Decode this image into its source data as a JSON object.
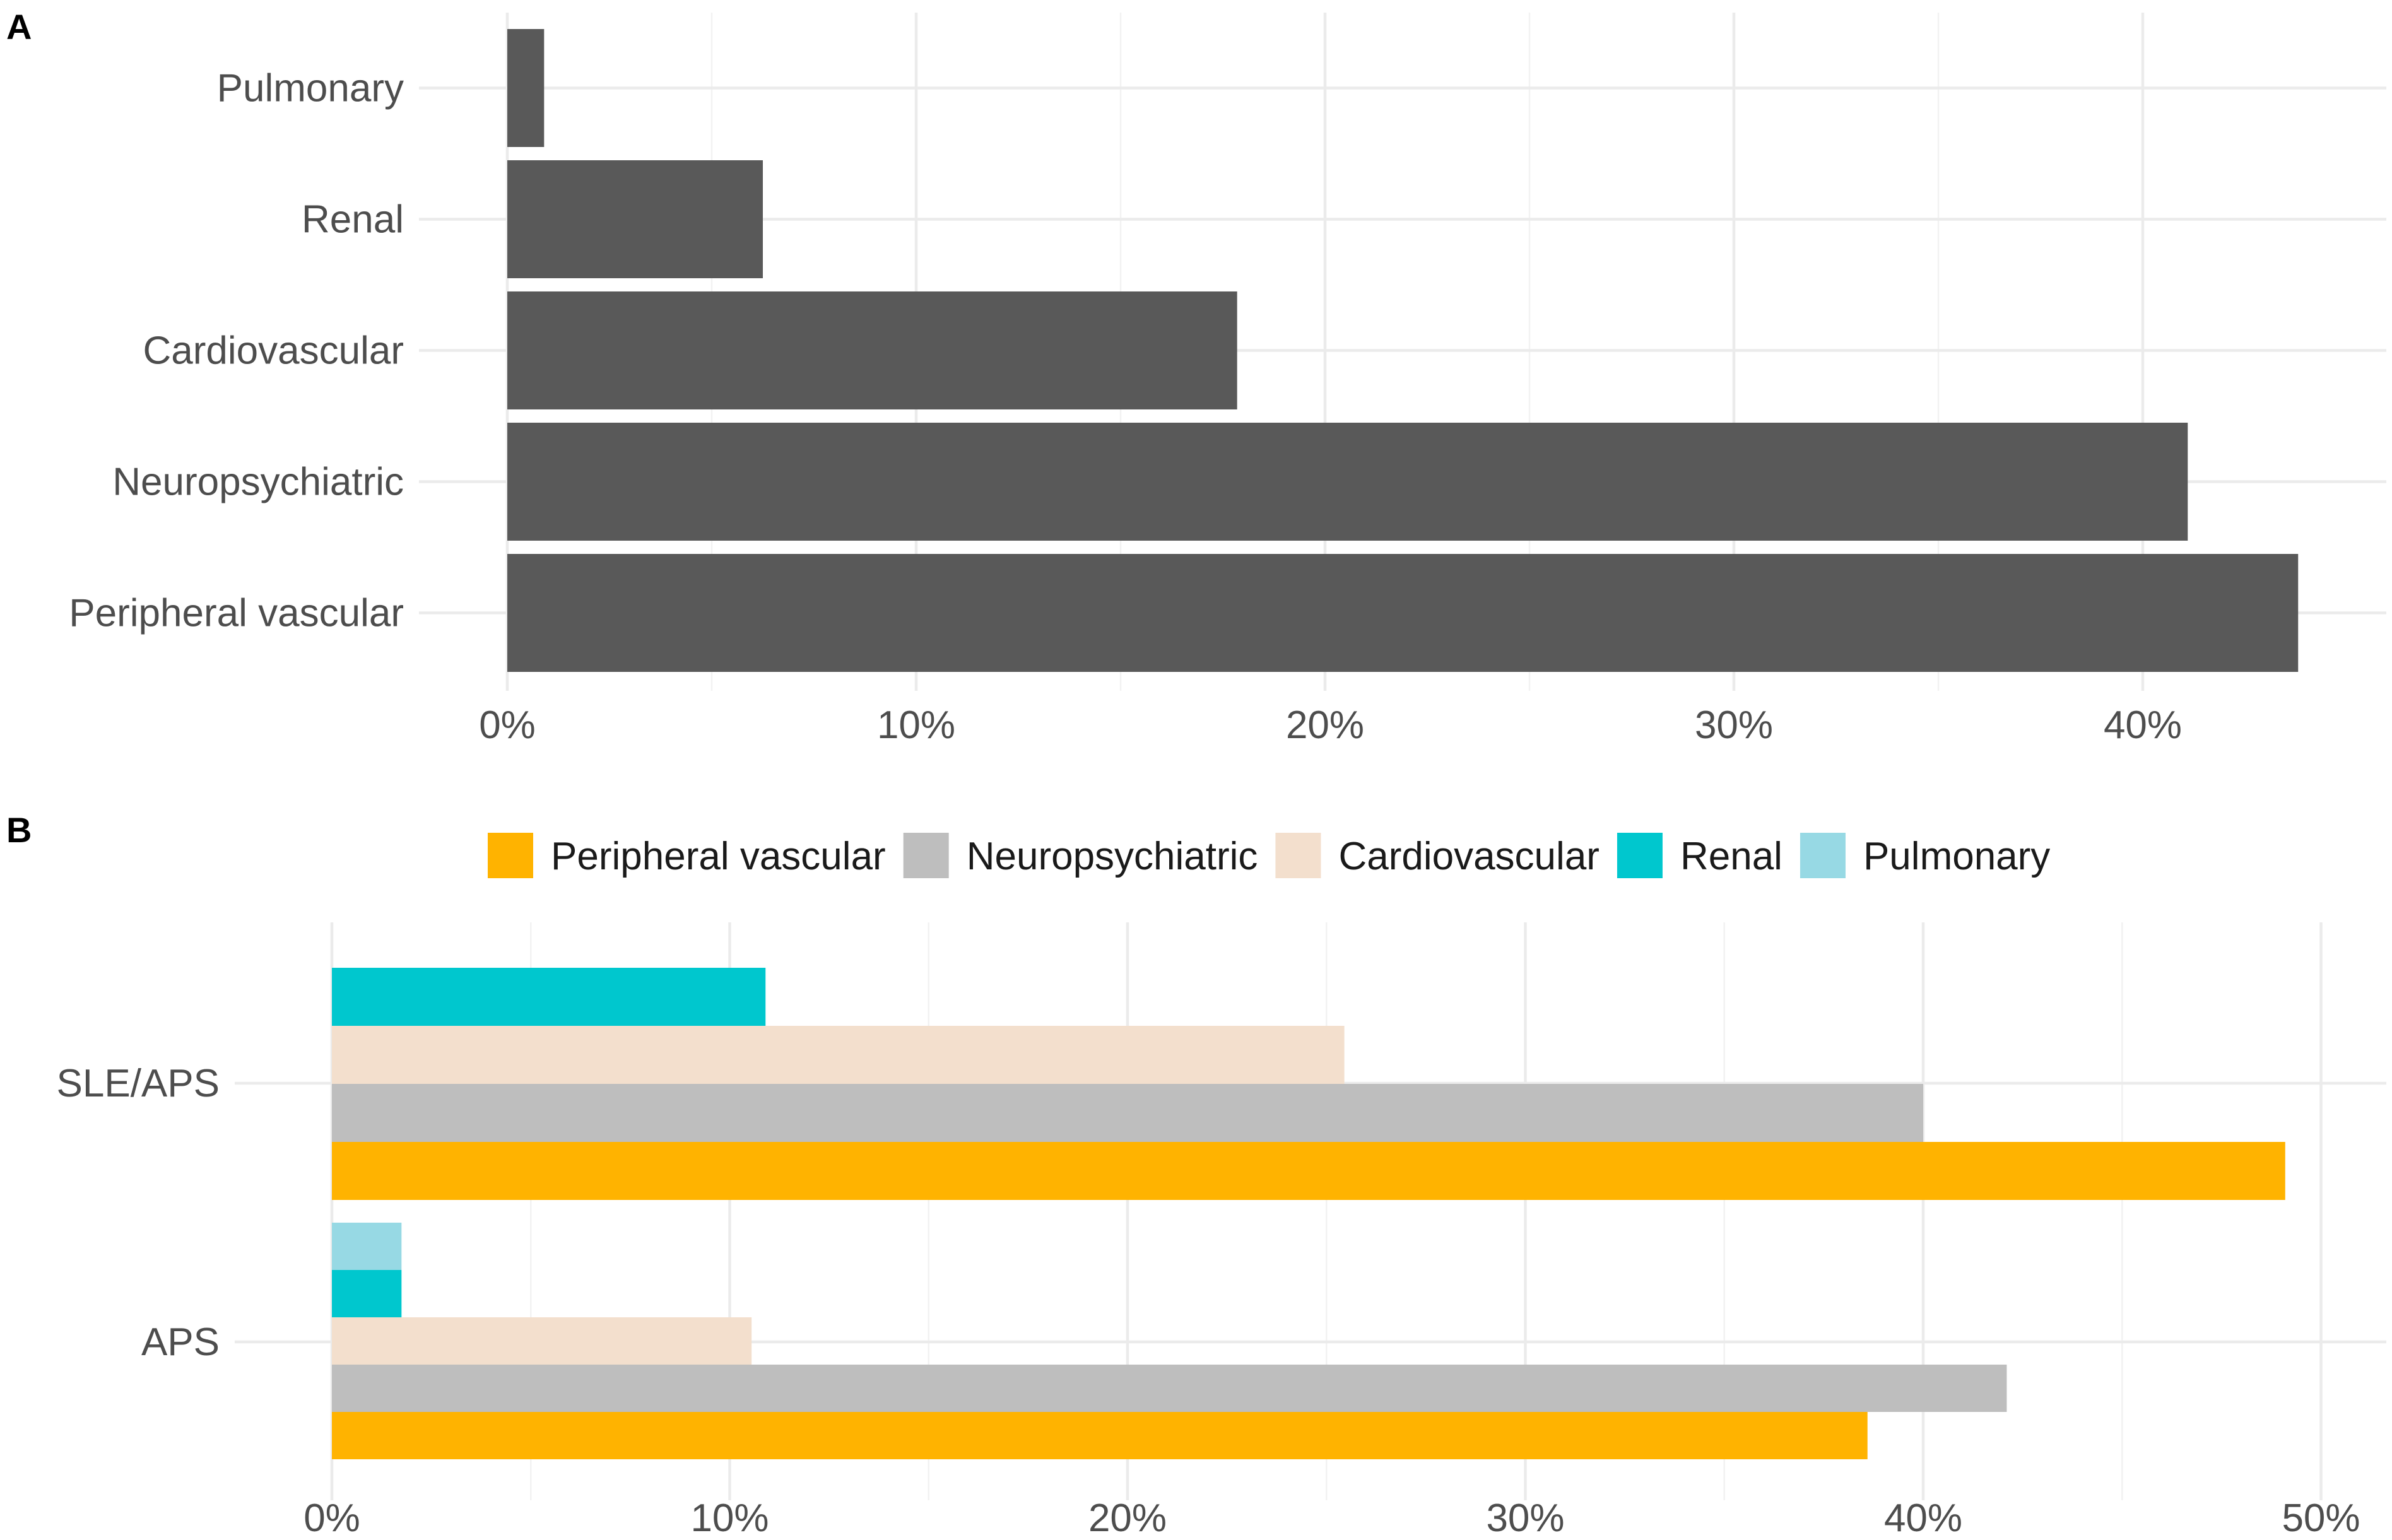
{
  "chart_data": [
    {
      "panel": "A",
      "type": "bar",
      "orientation": "horizontal",
      "categories": [
        "Pulmonary",
        "Renal",
        "Cardiovascular",
        "Neuropsychiatric",
        "Peripheral vascular"
      ],
      "values": [
        0.9,
        6.25,
        17.85,
        41.1,
        43.8
      ],
      "xlim": [
        0,
        45
      ],
      "xticks": [
        0,
        10,
        20,
        30,
        40
      ],
      "xtick_labels": [
        "0%",
        "10%",
        "20%",
        "30%",
        "40%"
      ],
      "bar_color": "#595959",
      "title": "",
      "xlabel": "",
      "ylabel": ""
    },
    {
      "panel": "B",
      "type": "bar",
      "orientation": "horizontal",
      "grouped": true,
      "categories": [
        "SLE/APS",
        "APS"
      ],
      "series": [
        {
          "name": "Peripheral vascular",
          "color": "#FFB300",
          "values": [
            49.1,
            38.6
          ]
        },
        {
          "name": "Neuropsychiatric",
          "color": "#BEBEBE",
          "values": [
            40.0,
            42.1
          ]
        },
        {
          "name": "Cardiovascular",
          "color": "#F3DFCD",
          "values": [
            25.45,
            10.55
          ]
        },
        {
          "name": "Renal",
          "color": "#00C7CE",
          "values": [
            10.9,
            1.75
          ]
        },
        {
          "name": "Pulmonary",
          "color": "#97D9E4",
          "values": [
            0,
            1.75
          ]
        }
      ],
      "xlim": [
        0,
        51
      ],
      "xticks": [
        0,
        10,
        20,
        30,
        40,
        50
      ],
      "xtick_labels": [
        "0%",
        "10%",
        "20%",
        "30%",
        "40%",
        "50%"
      ],
      "legend_position": "top",
      "title": "",
      "xlabel": "",
      "ylabel": ""
    }
  ]
}
